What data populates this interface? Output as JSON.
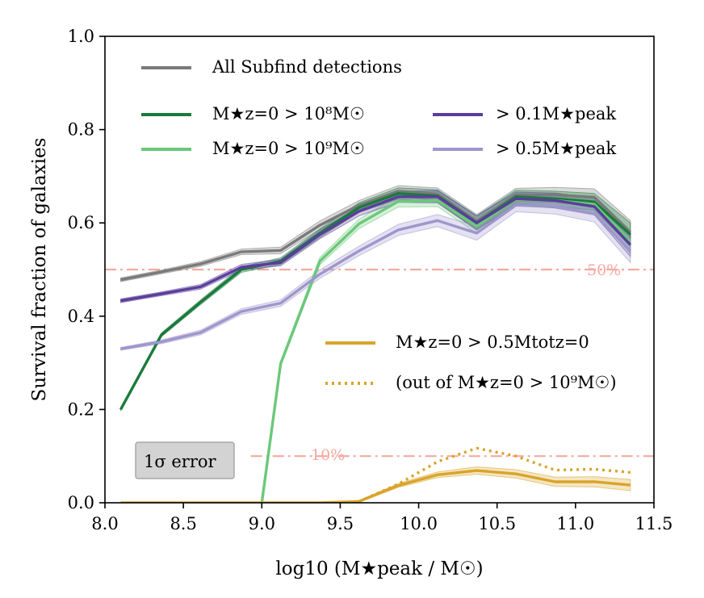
{
  "chart_data": {
    "type": "line",
    "xlabel": "log10 (M★peak / M☉)",
    "ylabel": "Survival fraction of galaxies",
    "xlim": [
      8.0,
      11.5
    ],
    "ylim": [
      0.0,
      1.0
    ],
    "xticks": [
      8.0,
      8.5,
      9.0,
      9.5,
      10.0,
      10.5,
      11.0,
      11.5
    ],
    "xtick_labels": [
      "8.0",
      "8.5",
      "9.0",
      "9.5",
      "10.0",
      "10.5",
      "11.0",
      "11.5"
    ],
    "yticks": [
      0.0,
      0.2,
      0.4,
      0.6,
      0.8,
      1.0
    ],
    "ytick_labels": [
      "0.0",
      "0.2",
      "0.4",
      "0.6",
      "0.8",
      "1.0"
    ],
    "error_box_label": "1σ error",
    "reference_lines": [
      {
        "name": "50%",
        "y": 0.5,
        "label": "50%",
        "color": "#f4aaa0"
      },
      {
        "name": "10%",
        "y": 0.1,
        "label": "10%",
        "color": "#f4aaa0"
      }
    ],
    "series": [
      {
        "name": "All Subfind detections",
        "legend": "All Subfind detections",
        "color": "#7a7a7a",
        "style": "solid",
        "x": [
          8.1,
          8.36,
          8.61,
          8.87,
          9.12,
          9.37,
          9.62,
          9.87,
          10.12,
          10.37,
          10.62,
          10.87,
          11.12,
          11.35
        ],
        "y": [
          0.478,
          0.495,
          0.512,
          0.538,
          0.541,
          0.595,
          0.638,
          0.668,
          0.662,
          0.603,
          0.66,
          0.66,
          0.655,
          0.58
        ],
        "err": [
          0.004,
          0.004,
          0.005,
          0.006,
          0.007,
          0.009,
          0.01,
          0.012,
          0.013,
          0.015,
          0.014,
          0.016,
          0.018,
          0.025
        ]
      },
      {
        "name": "mstar-gt-1e8",
        "legend": "M★z=0 > 10⁸M☉",
        "color": "#1a7a3c",
        "style": "solid",
        "x": [
          8.1,
          8.36,
          8.61,
          8.87,
          9.12,
          9.37,
          9.62,
          9.87,
          10.12,
          10.37,
          10.62,
          10.87,
          11.12,
          11.35
        ],
        "y": [
          0.2,
          0.36,
          0.43,
          0.5,
          0.518,
          0.578,
          0.633,
          0.663,
          0.658,
          0.6,
          0.656,
          0.652,
          0.645,
          0.575
        ],
        "err": [
          0.003,
          0.004,
          0.005,
          0.006,
          0.007,
          0.009,
          0.01,
          0.012,
          0.013,
          0.015,
          0.014,
          0.016,
          0.018,
          0.025
        ]
      },
      {
        "name": "mstar-gt-1e9",
        "legend": "M★z=0 > 10⁹M☉",
        "color": "#6cc87a",
        "style": "solid",
        "x": [
          9.0,
          9.12,
          9.37,
          9.62,
          9.87,
          10.12,
          10.37,
          10.62,
          10.87,
          11.12,
          11.35
        ],
        "y": [
          0.0,
          0.298,
          0.518,
          0.598,
          0.646,
          0.648,
          0.593,
          0.65,
          0.648,
          0.64,
          0.56
        ],
        "err": [
          0.0,
          0.006,
          0.008,
          0.01,
          0.012,
          0.013,
          0.015,
          0.014,
          0.016,
          0.018,
          0.025
        ]
      },
      {
        "name": "gt-0.1-peak",
        "legend": "> 0.1M★peak",
        "color": "#5a3e9b",
        "style": "solid",
        "x": [
          8.1,
          8.36,
          8.61,
          8.87,
          9.12,
          9.37,
          9.62,
          9.87,
          10.12,
          10.37,
          10.62,
          10.87,
          11.12,
          11.35
        ],
        "y": [
          0.433,
          0.448,
          0.463,
          0.505,
          0.515,
          0.575,
          0.625,
          0.656,
          0.656,
          0.6,
          0.652,
          0.648,
          0.635,
          0.553
        ],
        "err": [
          0.004,
          0.004,
          0.005,
          0.006,
          0.007,
          0.009,
          0.01,
          0.012,
          0.013,
          0.015,
          0.014,
          0.016,
          0.018,
          0.025
        ]
      },
      {
        "name": "gt-0.5-peak",
        "legend": "> 0.5M★peak",
        "color": "#9e96cc",
        "style": "solid",
        "x": [
          8.1,
          8.36,
          8.61,
          8.87,
          9.12,
          9.37,
          9.62,
          9.87,
          10.12,
          10.37,
          10.62,
          10.87,
          11.12,
          11.35
        ],
        "y": [
          0.33,
          0.345,
          0.365,
          0.41,
          0.428,
          0.49,
          0.54,
          0.585,
          0.605,
          0.578,
          0.638,
          0.635,
          0.62,
          0.54
        ],
        "err": [
          0.003,
          0.004,
          0.005,
          0.006,
          0.007,
          0.009,
          0.01,
          0.012,
          0.013,
          0.015,
          0.014,
          0.016,
          0.018,
          0.025
        ]
      },
      {
        "name": "mstar-gt-half-tot",
        "legend": "M★z=0 > 0.5Mtotz=0",
        "color": "#d9a42a",
        "style": "solid",
        "x": [
          8.1,
          8.36,
          8.61,
          8.87,
          9.12,
          9.37,
          9.62,
          9.87,
          10.12,
          10.37,
          10.62,
          10.87,
          11.12,
          11.35
        ],
        "y": [
          0.0,
          0.0,
          0.0,
          0.0,
          0.0,
          0.0,
          0.003,
          0.037,
          0.06,
          0.069,
          0.062,
          0.045,
          0.045,
          0.038
        ],
        "err": [
          0.0,
          0.0,
          0.0,
          0.0,
          0.0,
          0.0,
          0.002,
          0.004,
          0.006,
          0.008,
          0.009,
          0.01,
          0.011,
          0.012
        ]
      },
      {
        "name": "half-tot-out-of-1e9",
        "legend": "(out of M★z=0 > 10⁹M☉)",
        "color": "#d9a42a",
        "style": "dotted",
        "x": [
          9.62,
          9.87,
          10.12,
          10.37,
          10.62,
          10.87,
          11.12,
          11.35
        ],
        "y": [
          0.003,
          0.04,
          0.088,
          0.117,
          0.1,
          0.07,
          0.072,
          0.065
        ]
      }
    ]
  }
}
